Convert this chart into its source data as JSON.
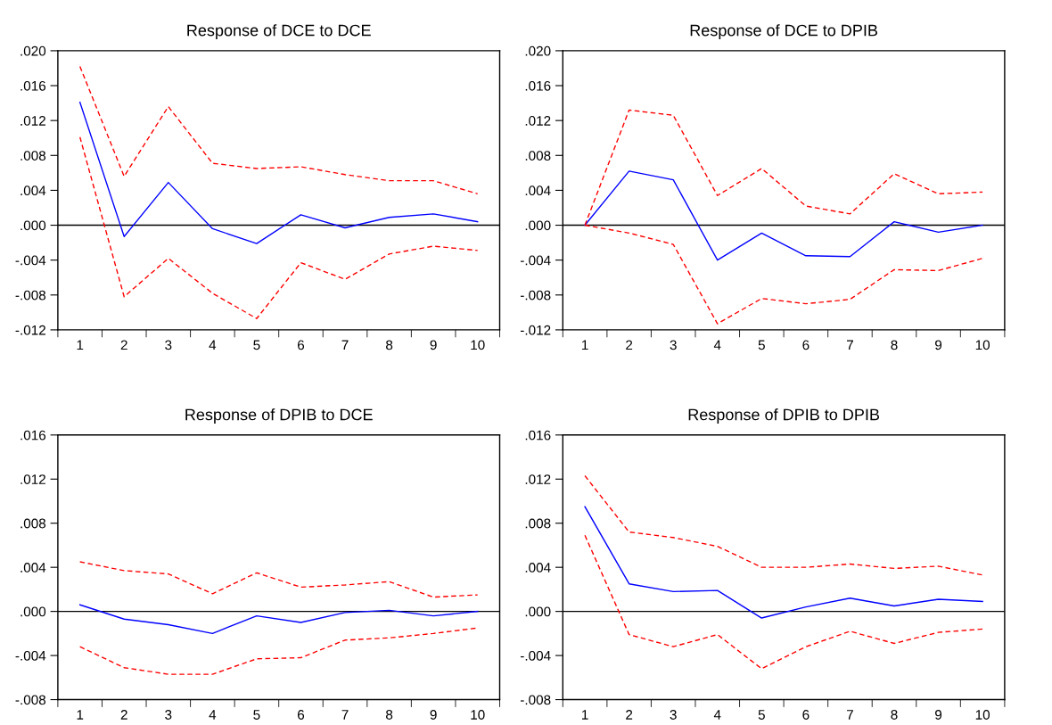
{
  "chart_data": [
    {
      "type": "line",
      "title": "Response of DCE to DCE",
      "categories": [
        "1",
        "2",
        "3",
        "4",
        "5",
        "6",
        "7",
        "8",
        "9",
        "10"
      ],
      "series": [
        {
          "color": "#0000ff",
          "line_style": "solid",
          "values": [
            0.0141,
            -0.0013,
            0.0049,
            -0.0004,
            -0.0021,
            0.0012,
            -0.0003,
            0.0009,
            0.0013,
            0.0004
          ]
        },
        {
          "color": "#ff0000",
          "line_style": "dashed",
          "values": [
            0.0182,
            0.0056,
            0.0136,
            0.0071,
            0.0065,
            0.0067,
            0.0058,
            0.0051,
            0.0051,
            0.0036
          ]
        },
        {
          "color": "#ff0000",
          "line_style": "dashed",
          "values": [
            0.0101,
            -0.0082,
            -0.0038,
            -0.0078,
            -0.0107,
            -0.0043,
            -0.0062,
            -0.0033,
            -0.0024,
            -0.0029
          ]
        }
      ],
      "ylim": [
        -0.012,
        0.02
      ],
      "yticks": [
        {
          "value": -0.012,
          "label": "-.012"
        },
        {
          "value": -0.008,
          "label": "-.008"
        },
        {
          "value": -0.004,
          "label": "-.004"
        },
        {
          "value": 0.0,
          "label": ".000"
        },
        {
          "value": 0.004,
          "label": ".004"
        },
        {
          "value": 0.008,
          "label": ".008"
        },
        {
          "value": 0.012,
          "label": ".012"
        },
        {
          "value": 0.016,
          "label": ".016"
        },
        {
          "value": 0.02,
          "label": ".020"
        }
      ],
      "ref_lines": [
        {
          "axis": "y",
          "value": 0,
          "color": "#000000"
        }
      ]
    },
    {
      "type": "line",
      "title": "Response of DCE to DPIB",
      "categories": [
        "1",
        "2",
        "3",
        "4",
        "5",
        "6",
        "7",
        "8",
        "9",
        "10"
      ],
      "series": [
        {
          "color": "#0000ff",
          "line_style": "solid",
          "values": [
            0.0,
            0.0062,
            0.0052,
            -0.004,
            -0.0009,
            -0.0035,
            -0.0036,
            0.0004,
            -0.0008,
            0.0
          ]
        },
        {
          "color": "#ff0000",
          "line_style": "dashed",
          "values": [
            0.0,
            0.0132,
            0.0126,
            0.0034,
            0.0065,
            0.0022,
            0.0013,
            0.0059,
            0.0036,
            0.0038
          ]
        },
        {
          "color": "#ff0000",
          "line_style": "dashed",
          "values": [
            0.0,
            -0.0009,
            -0.0022,
            -0.0113,
            -0.0084,
            -0.009,
            -0.0085,
            -0.0051,
            -0.0052,
            -0.0038
          ]
        }
      ],
      "ylim": [
        -0.012,
        0.02
      ],
      "yticks": [
        {
          "value": -0.012,
          "label": "-.012"
        },
        {
          "value": -0.008,
          "label": "-.008"
        },
        {
          "value": -0.004,
          "label": "-.004"
        },
        {
          "value": 0.0,
          "label": ".000"
        },
        {
          "value": 0.004,
          "label": ".004"
        },
        {
          "value": 0.008,
          "label": ".008"
        },
        {
          "value": 0.012,
          "label": ".012"
        },
        {
          "value": 0.016,
          "label": ".016"
        },
        {
          "value": 0.02,
          "label": ".020"
        }
      ],
      "ref_lines": [
        {
          "axis": "y",
          "value": 0,
          "color": "#000000"
        }
      ]
    },
    {
      "type": "line",
      "title": "Response of DPIB to DCE",
      "categories": [
        "1",
        "2",
        "3",
        "4",
        "5",
        "6",
        "7",
        "8",
        "9",
        "10"
      ],
      "series": [
        {
          "color": "#0000ff",
          "line_style": "solid",
          "values": [
            0.0006,
            -0.0007,
            -0.0012,
            -0.002,
            -0.0004,
            -0.001,
            -0.0001,
            0.0001,
            -0.0004,
            0.0
          ]
        },
        {
          "color": "#ff0000",
          "line_style": "dashed",
          "values": [
            0.0045,
            0.0037,
            0.0034,
            0.0016,
            0.0035,
            0.0022,
            0.0024,
            0.0027,
            0.0013,
            0.0015
          ]
        },
        {
          "color": "#ff0000",
          "line_style": "dashed",
          "values": [
            -0.0032,
            -0.0051,
            -0.0057,
            -0.0057,
            -0.0043,
            -0.0042,
            -0.0026,
            -0.0024,
            -0.002,
            -0.0015
          ]
        }
      ],
      "ylim": [
        -0.008,
        0.016
      ],
      "yticks": [
        {
          "value": -0.008,
          "label": "-.008"
        },
        {
          "value": -0.004,
          "label": "-.004"
        },
        {
          "value": 0.0,
          "label": ".000"
        },
        {
          "value": 0.004,
          "label": ".004"
        },
        {
          "value": 0.008,
          "label": ".008"
        },
        {
          "value": 0.012,
          "label": ".012"
        },
        {
          "value": 0.016,
          "label": ".016"
        }
      ],
      "ref_lines": [
        {
          "axis": "y",
          "value": 0,
          "color": "#000000"
        }
      ]
    },
    {
      "type": "line",
      "title": "Response of DPIB to DPIB",
      "categories": [
        "1",
        "2",
        "3",
        "4",
        "5",
        "6",
        "7",
        "8",
        "9",
        "10"
      ],
      "series": [
        {
          "color": "#0000ff",
          "line_style": "solid",
          "values": [
            0.0095,
            0.0025,
            0.0018,
            0.0019,
            -0.0006,
            0.0004,
            0.0012,
            0.0005,
            0.0011,
            0.0009
          ]
        },
        {
          "color": "#ff0000",
          "line_style": "dashed",
          "values": [
            0.0123,
            0.0072,
            0.0067,
            0.0059,
            0.004,
            0.004,
            0.0043,
            0.0039,
            0.0041,
            0.0033
          ]
        },
        {
          "color": "#ff0000",
          "line_style": "dashed",
          "values": [
            0.0069,
            -0.0021,
            -0.0032,
            -0.0021,
            -0.0052,
            -0.0032,
            -0.0018,
            -0.0029,
            -0.0019,
            -0.0016
          ]
        }
      ],
      "ylim": [
        -0.008,
        0.016
      ],
      "yticks": [
        {
          "value": -0.008,
          "label": "-.008"
        },
        {
          "value": -0.004,
          "label": "-.004"
        },
        {
          "value": 0.0,
          "label": ".000"
        },
        {
          "value": 0.004,
          "label": ".004"
        },
        {
          "value": 0.008,
          "label": ".008"
        },
        {
          "value": 0.012,
          "label": ".012"
        },
        {
          "value": 0.016,
          "label": ".016"
        }
      ],
      "ref_lines": [
        {
          "axis": "y",
          "value": 0,
          "color": "#000000"
        }
      ]
    }
  ]
}
